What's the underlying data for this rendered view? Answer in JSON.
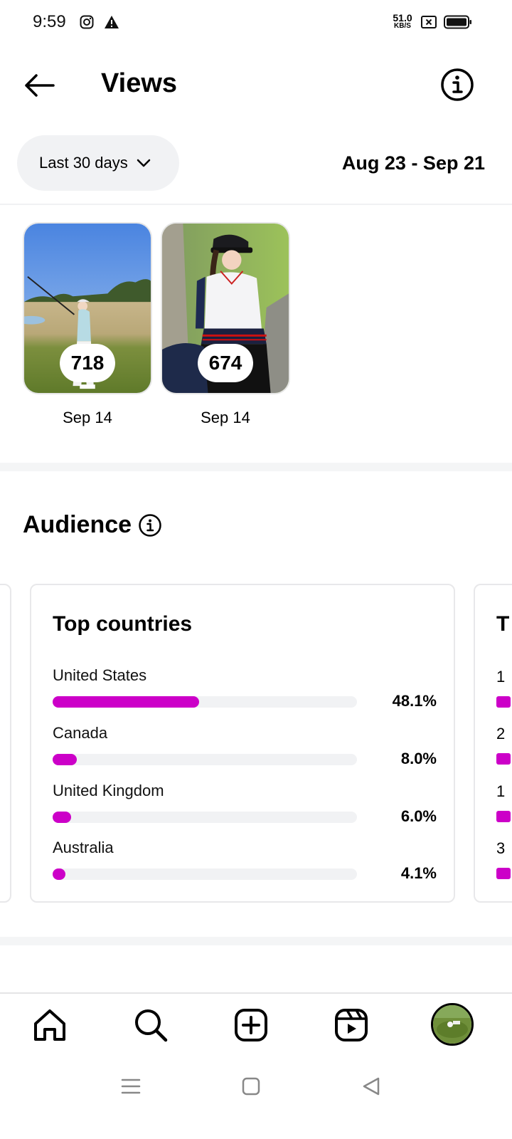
{
  "status_bar": {
    "time": "9:59",
    "net_speed_value": "51.0",
    "net_speed_unit": "KB/S",
    "icons": [
      "instagram-icon",
      "warning-icon",
      "sim-disabled-icon",
      "battery-icon"
    ]
  },
  "header": {
    "title": "Views"
  },
  "filter": {
    "range_label": "Last 30 days",
    "date_range": "Aug 23 - Sep 21"
  },
  "top_content": [
    {
      "count": "718",
      "date": "Sep 14"
    },
    {
      "count": "674",
      "date": "Sep 14"
    }
  ],
  "audience": {
    "title": "Audience",
    "top_countries": {
      "title": "Top countries",
      "items": [
        {
          "name": "United States",
          "percent_label": "48.1%",
          "percent": 48.1
        },
        {
          "name": "Canada",
          "percent_label": "8.0%",
          "percent": 8.0
        },
        {
          "name": "United Kingdom",
          "percent_label": "6.0%",
          "percent": 6.0
        },
        {
          "name": "Australia",
          "percent_label": "4.1%",
          "percent": 4.1
        }
      ]
    },
    "next_card_peek": {
      "title_initial": "T",
      "row_initials": [
        "1",
        "2",
        "1",
        "3"
      ]
    }
  },
  "bottom_nav": {
    "items": [
      "home-icon",
      "search-icon",
      "create-icon",
      "reels-icon",
      "profile-avatar"
    ]
  },
  "colors": {
    "accent_bar": "#cc00c8",
    "track": "#f1f2f4",
    "pill_bg": "#f1f2f4"
  }
}
